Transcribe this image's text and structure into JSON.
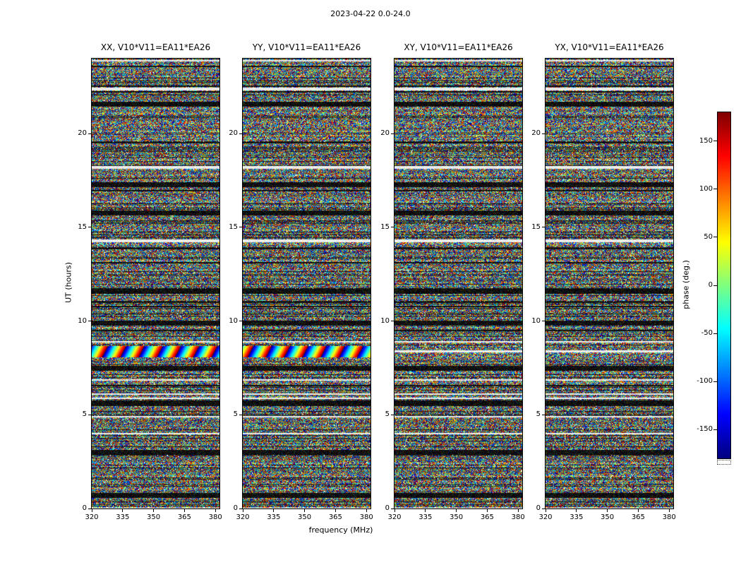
{
  "figure": {
    "title": "2023-04-22 0.0-24.0"
  },
  "axes": {
    "xlabel": "frequency (MHz)",
    "ylabel": "UT (hours)",
    "x_ticks": [
      320,
      335,
      350,
      365,
      380
    ],
    "y_ticks": [
      0,
      5,
      10,
      15,
      20
    ],
    "xlim": [
      320,
      382
    ],
    "ylim": [
      0,
      24
    ]
  },
  "panels": [
    {
      "id": "XX",
      "title": "XX, V10*V11=EA11*EA26"
    },
    {
      "id": "YY",
      "title": "YY, V10*V11=EA11*EA26"
    },
    {
      "id": "XY",
      "title": "XY, V10*V11=EA11*EA26"
    },
    {
      "id": "YX",
      "title": "YX, V10*V11=EA11*EA26"
    }
  ],
  "colorbar": {
    "label": "phase (deg.)",
    "ticks": [
      150,
      100,
      50,
      0,
      -50,
      -100,
      -150
    ],
    "vmin": -180,
    "vmax": 180,
    "colormap": "jet"
  },
  "chart_data": {
    "type": "heatmap",
    "title": "2023-04-22 0.0-24.0",
    "xlabel": "frequency (MHz)",
    "ylabel": "UT (hours)",
    "zlabel": "phase (deg.)",
    "x_range_mhz": [
      320,
      382
    ],
    "y_range_hours": [
      0,
      24
    ],
    "z_range_deg": [
      -180,
      180
    ],
    "x_ticks": [
      320,
      335,
      350,
      365,
      380
    ],
    "y_ticks": [
      0,
      5,
      10,
      15,
      20
    ],
    "colorbar_ticks": [
      150,
      100,
      50,
      0,
      -50,
      -100,
      -150
    ],
    "colormap": "jet",
    "legend_position": "right-colorbar",
    "grid": false,
    "panels": [
      "XX, V10*V11=EA11*EA26",
      "YY, V10*V11=EA11*EA26",
      "XY, V10*V11=EA11*EA26",
      "YX, V10*V11=EA11*EA26"
    ],
    "content": "Visibility phase versus frequency (320-382 MHz) and time (0-24 h UT) for the four polarization products XX, YY, XY, YX of baseline V10*V11 = EA11*EA26 on 2023-04-22. Values appear as dense pseudo-random phase noise (full -180..180 deg range, jet colormap) with horizontal banded structure common to all four panels: black low-amplitude bands, thin white flagged rows, and a coherent rainbow phase-wrap band near 8.4 h UT.",
    "dark_bands_ut": [
      21.6,
      17.3,
      15.8,
      11.6,
      9.9,
      7.5,
      5.6,
      3.0,
      0.7
    ],
    "white_bands_ut": [
      22.4,
      14.3
    ],
    "rainbow_band_ut": 8.4
  }
}
